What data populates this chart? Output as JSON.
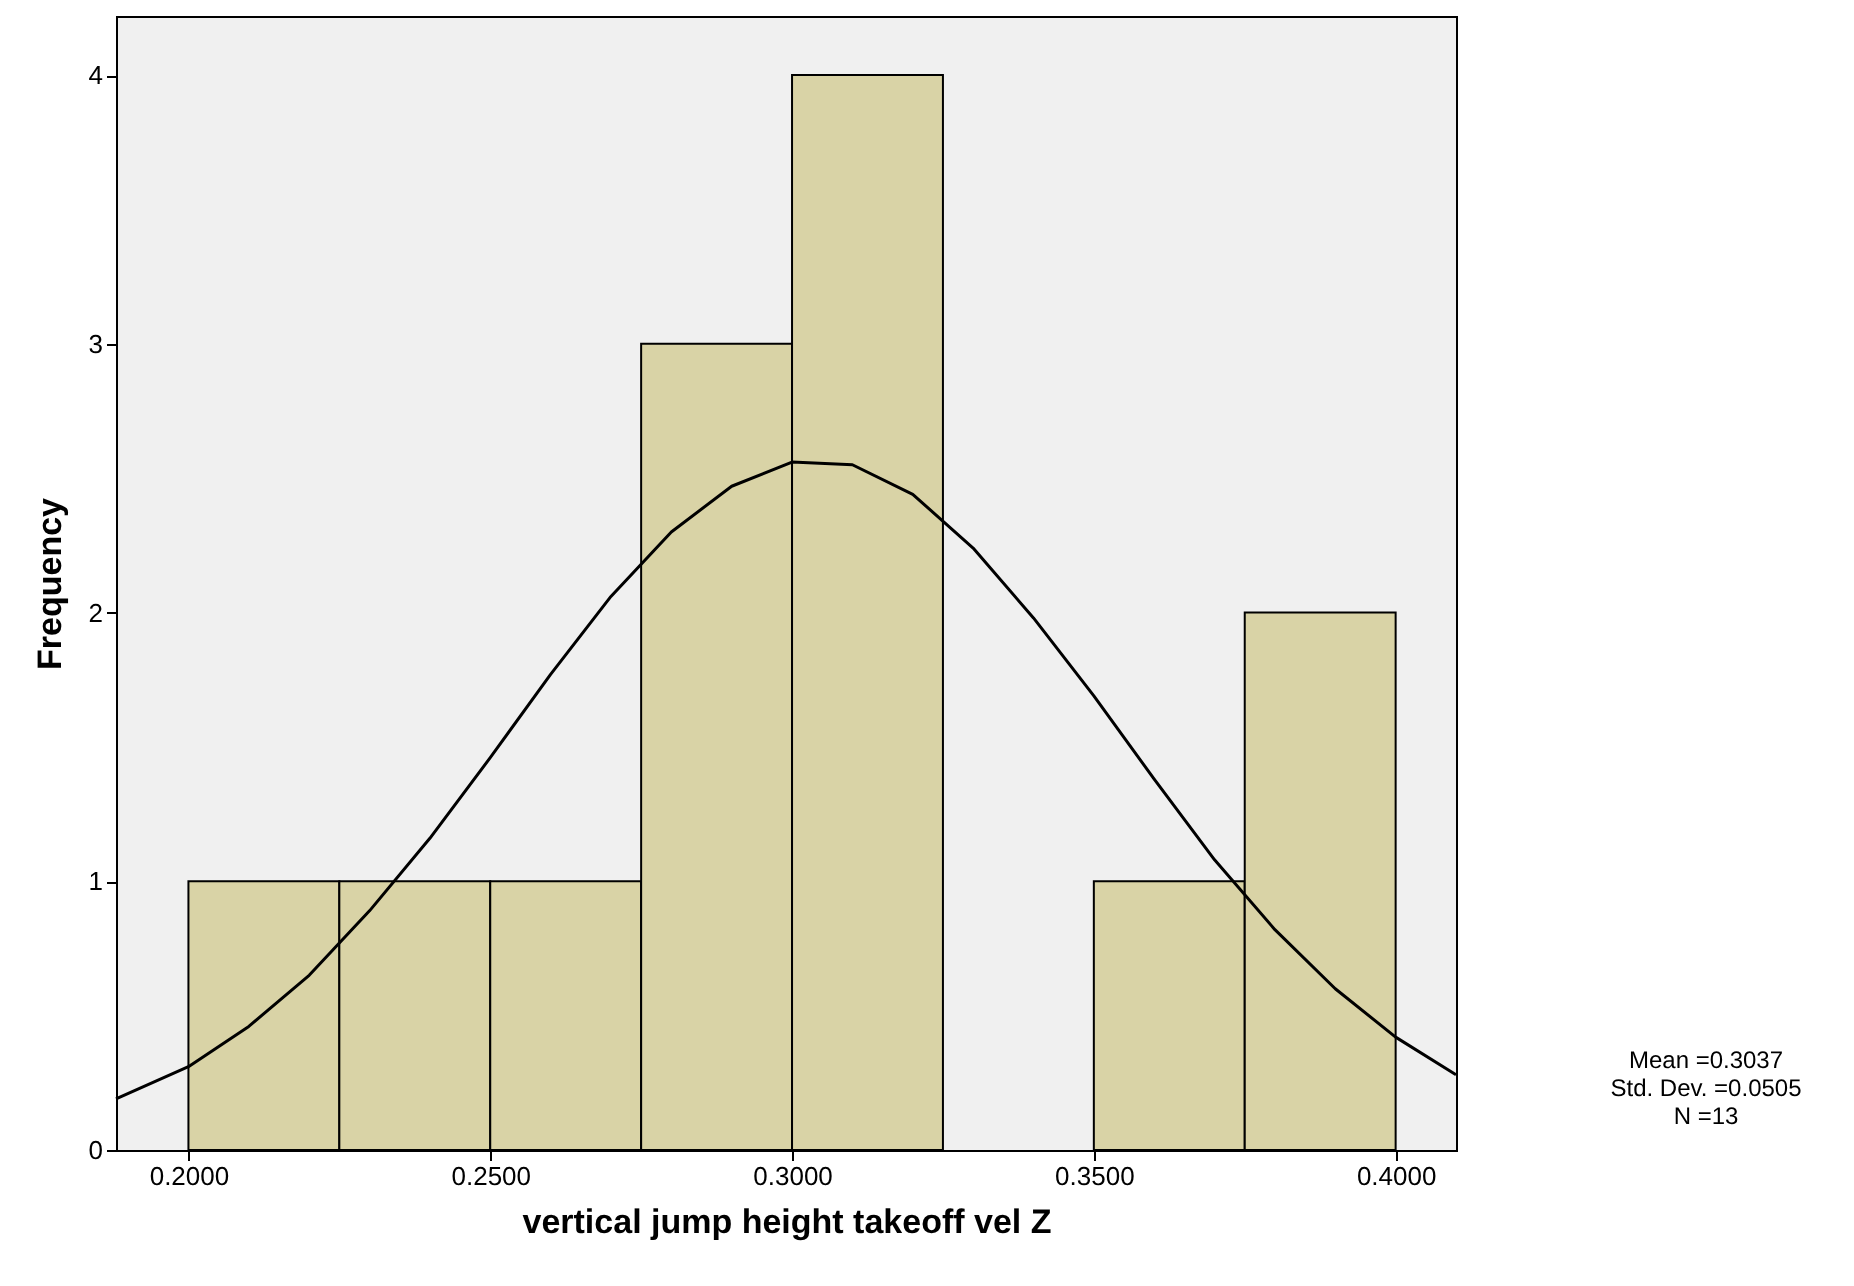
{
  "chart_data": {
    "type": "histogram",
    "xlabel": "vertical jump height takeoff vel Z",
    "ylabel": "Frequency",
    "series": [
      {
        "bins": [
          0.2,
          0.225,
          0.25,
          0.275,
          0.3,
          0.325,
          0.35,
          0.375,
          0.4
        ],
        "values": [
          1,
          1,
          1,
          3,
          4,
          0,
          1,
          2
        ],
        "color": "#d9d3a6"
      },
      {
        "type": "line",
        "color": "#000000",
        "x": [
          0.188,
          0.2,
          0.21,
          0.22,
          0.23,
          0.24,
          0.25,
          0.26,
          0.27,
          0.28,
          0.29,
          0.3,
          0.31,
          0.32,
          0.33,
          0.34,
          0.35,
          0.36,
          0.37,
          0.38,
          0.39,
          0.4,
          0.41
        ],
        "values": [
          0.19,
          0.31,
          0.46,
          0.65,
          0.89,
          1.16,
          1.46,
          1.77,
          2.06,
          2.3,
          2.47,
          2.56,
          2.55,
          2.44,
          2.24,
          1.98,
          1.69,
          1.38,
          1.08,
          0.82,
          0.6,
          0.42,
          0.28
        ]
      }
    ],
    "xlim": [
      0.188,
      0.41
    ],
    "xticks": [
      {
        "value": 0.2,
        "label": "0.2000"
      },
      {
        "value": 0.25,
        "label": "0.2500"
      },
      {
        "value": 0.3,
        "label": "0.3000"
      },
      {
        "value": 0.35,
        "label": "0.3500"
      },
      {
        "value": 0.4,
        "label": "0.4000"
      }
    ],
    "ylim": [
      0,
      4.22
    ],
    "yticks": [
      0,
      1,
      2,
      3,
      4
    ],
    "grid": false,
    "annotations": [
      "Mean =0.3037",
      "Std. Dev. =0.0505",
      "N =13"
    ]
  }
}
